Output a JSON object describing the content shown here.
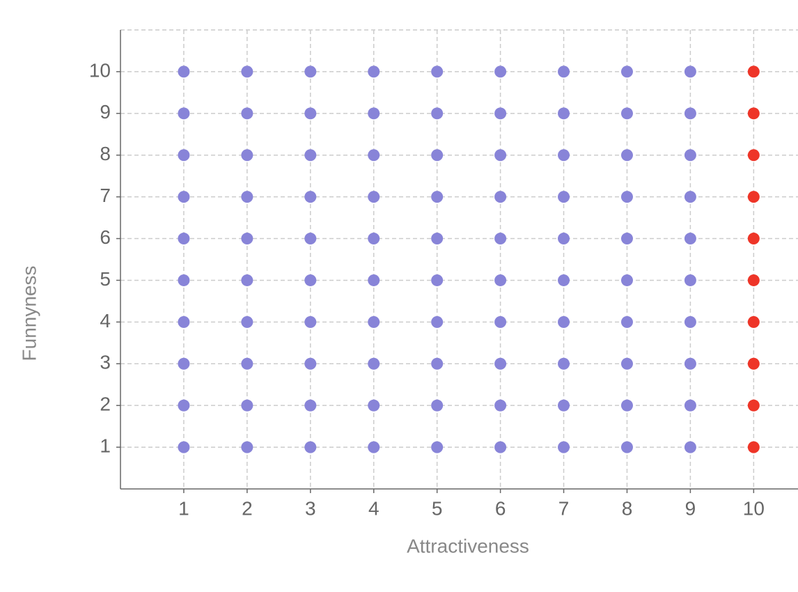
{
  "chart_data": {
    "type": "scatter",
    "x_label": "Attractiveness",
    "y_label": "Funnyness",
    "xlim": [
      0,
      10.7
    ],
    "ylim": [
      0,
      11
    ],
    "xticks": [
      1,
      2,
      3,
      4,
      5,
      6,
      7,
      8,
      9,
      10
    ],
    "yticks": [
      1,
      2,
      3,
      4,
      5,
      6,
      7,
      8,
      9,
      10
    ],
    "grid": true,
    "series": [
      {
        "color": "#8884d8",
        "x": [
          1,
          1,
          1,
          1,
          1,
          1,
          1,
          1,
          1,
          1,
          2,
          2,
          2,
          2,
          2,
          2,
          2,
          2,
          2,
          2,
          3,
          3,
          3,
          3,
          3,
          3,
          3,
          3,
          3,
          3,
          4,
          4,
          4,
          4,
          4,
          4,
          4,
          4,
          4,
          4,
          5,
          5,
          5,
          5,
          5,
          5,
          5,
          5,
          5,
          5,
          6,
          6,
          6,
          6,
          6,
          6,
          6,
          6,
          6,
          6,
          7,
          7,
          7,
          7,
          7,
          7,
          7,
          7,
          7,
          7,
          8,
          8,
          8,
          8,
          8,
          8,
          8,
          8,
          8,
          8,
          9,
          9,
          9,
          9,
          9,
          9,
          9,
          9,
          9,
          9
        ],
        "values": [
          1,
          2,
          3,
          4,
          5,
          6,
          7,
          8,
          9,
          10,
          1,
          2,
          3,
          4,
          5,
          6,
          7,
          8,
          9,
          10,
          1,
          2,
          3,
          4,
          5,
          6,
          7,
          8,
          9,
          10,
          1,
          2,
          3,
          4,
          5,
          6,
          7,
          8,
          9,
          10,
          1,
          2,
          3,
          4,
          5,
          6,
          7,
          8,
          9,
          10,
          1,
          2,
          3,
          4,
          5,
          6,
          7,
          8,
          9,
          10,
          1,
          2,
          3,
          4,
          5,
          6,
          7,
          8,
          9,
          10,
          1,
          2,
          3,
          4,
          5,
          6,
          7,
          8,
          9,
          10,
          1,
          2,
          3,
          4,
          5,
          6,
          7,
          8,
          9,
          10
        ]
      },
      {
        "color": "#ee3528",
        "x": [
          10,
          10,
          10,
          10,
          10,
          10,
          10,
          10,
          10,
          10
        ],
        "values": [
          1,
          2,
          3,
          4,
          5,
          6,
          7,
          8,
          9,
          10
        ]
      }
    ]
  }
}
